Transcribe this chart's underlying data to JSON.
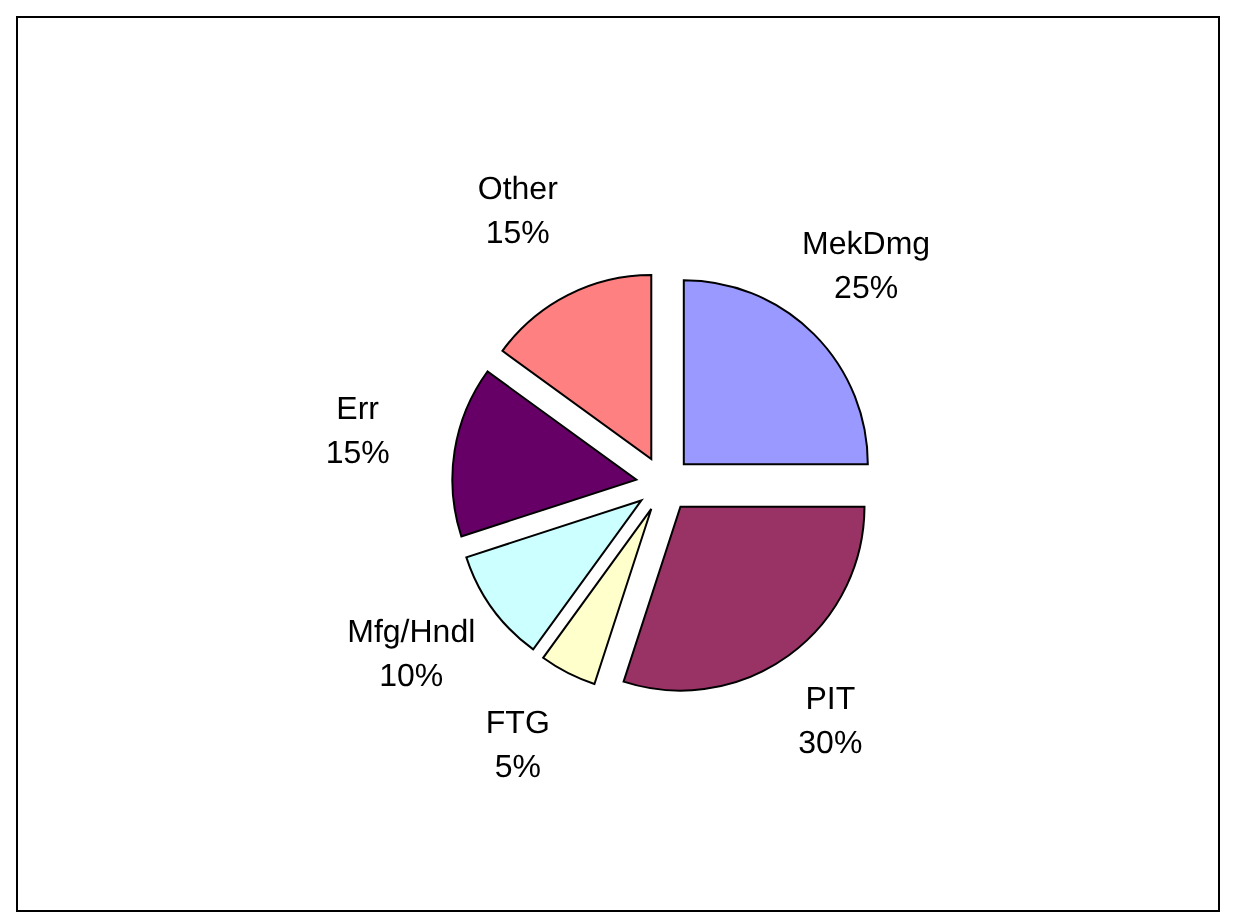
{
  "chart_data": {
    "type": "pie",
    "categories": [
      "MekDmg",
      "PIT",
      "FTG",
      "Mfg/Hndl",
      "Err",
      "Other"
    ],
    "values": [
      25,
      30,
      5,
      10,
      15,
      15
    ],
    "colors": [
      "#9999ff",
      "#993366",
      "#ffffcc",
      "#ccffff",
      "#660066",
      "#ff8080"
    ],
    "value_labels": [
      "25%",
      "30%",
      "5%",
      "10%",
      "15%",
      "15%"
    ],
    "legend": false
  }
}
